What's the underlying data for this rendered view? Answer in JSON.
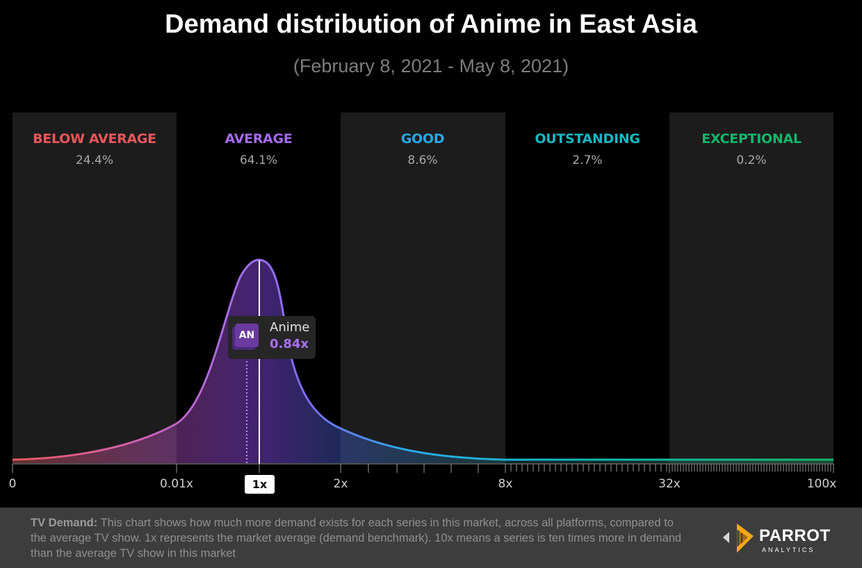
{
  "title": "Demand distribution of Anime in East Asia",
  "subtitle": "(February 8, 2021 - May 8, 2021)",
  "chart_data": {
    "type": "area",
    "title": "Demand distribution of Anime in East Asia",
    "subtitle": "(February 8, 2021 - May 8, 2021)",
    "x_scale": "log-like",
    "x_ticks": [
      "0",
      "0.01x",
      "2x",
      "8x",
      "32x",
      "100x"
    ],
    "benchmark": "1x",
    "bands": [
      {
        "name": "BELOW AVERAGE",
        "percent": "24.4%",
        "color": "#e8575a"
      },
      {
        "name": "AVERAGE",
        "percent": "64.1%",
        "color": "#a56af0"
      },
      {
        "name": "GOOD",
        "percent": "8.6%",
        "color": "#29a9e6"
      },
      {
        "name": "OUTSTANDING",
        "percent": "2.7%",
        "color": "#17b7c2"
      },
      {
        "name": "EXCEPTIONAL",
        "percent": "0.2%",
        "color": "#12b76a"
      }
    ],
    "series": [
      {
        "name": "Anime",
        "badge": "AN",
        "value": "0.84x"
      }
    ],
    "grid": false,
    "legend": "none"
  },
  "footer": {
    "label": "TV Demand:",
    "text": " This chart shows how much more demand exists for each series in this market, across all platforms, compared to the average TV show. 1x represents the market average (demand benchmark). 10x means a series is ten times more in demand than the average TV show in this market"
  },
  "logo": {
    "name": "PARROT",
    "sub": "ANALYTICS",
    "icon": "parrot-logo-mark-icon"
  }
}
